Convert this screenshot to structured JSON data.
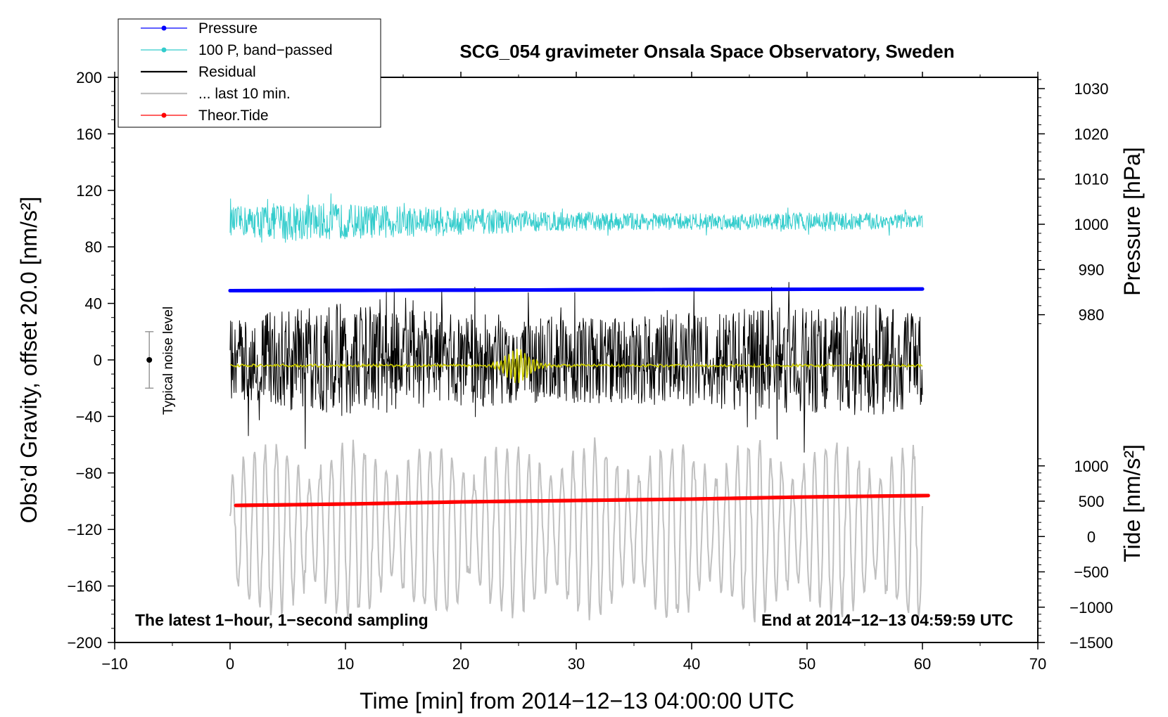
{
  "chart_data": {
    "type": "line",
    "title": "SCG_054 gravimeter Onsala Space Observatory, Sweden",
    "xlabel": "Time [min] from 2014−12−13 04:00:00 UTC",
    "ylabel": "Obs’d Gravity, offset 20.0 [nm/s²]",
    "xlim": [
      -10,
      70
    ],
    "ylim": [
      -200,
      200
    ],
    "x_ticks": [
      -10,
      0,
      10,
      20,
      30,
      40,
      50,
      60,
      70
    ],
    "x_tick_labels": [
      "−10",
      "0",
      "10",
      "20",
      "30",
      "40",
      "50",
      "60",
      "70"
    ],
    "y_ticks": [
      -200,
      -160,
      -120,
      -80,
      -40,
      0,
      40,
      80,
      120,
      160,
      200
    ],
    "y_tick_labels": [
      "−200",
      "−160",
      "−120",
      "−80",
      "−40",
      "0",
      "40",
      "80",
      "120",
      "160",
      "200"
    ],
    "right_axis_pressure": {
      "label": "Pressure [hPa]",
      "ticks": [
        980,
        990,
        1000,
        1010,
        1020,
        1030
      ],
      "tick_labels": [
        "980",
        "990",
        "1000",
        "1010",
        "1020",
        "1030"
      ],
      "axis_value_at_y0": 970,
      "axis_units_per_y": 0.3125
    },
    "right_axis_tide": {
      "label": "Tide [nm/s²]",
      "ticks": [
        -1500,
        -1000,
        -500,
        0,
        500,
        1000
      ],
      "tick_labels": [
        "−1500",
        "−1000",
        "−500",
        "0",
        "500",
        "1000"
      ],
      "axis_value_at_y0": 2500,
      "axis_units_per_y": 20
    },
    "legend": {
      "placement": "top-left",
      "items": [
        {
          "label": "Pressure",
          "color": "#0000ff",
          "marker": true
        },
        {
          "label": "100 P, band−passed",
          "color": "#33cccc",
          "marker": true
        },
        {
          "label": "Residual",
          "color": "#000000",
          "marker": false
        },
        {
          "label": "... last 10 min.",
          "color": "#c0c0c0",
          "marker": false
        },
        {
          "label": "Theor.Tide",
          "color": "#ff0000",
          "marker": true
        }
      ]
    },
    "noise_marker": {
      "x": -7,
      "y": 0,
      "y_low": -20,
      "y_high": 20,
      "label": "Typical noise level"
    },
    "annotations": {
      "bottom_left": "The latest 1−hour, 1−second sampling",
      "bottom_right": "End at 2014−12−13 04:59:59 UTC"
    },
    "x_range_data": [
      0,
      60
    ],
    "series": [
      {
        "name": "Pressure",
        "color": "#0000ff",
        "kind": "line",
        "x": [
          0,
          10,
          20,
          30,
          40,
          50,
          60
        ],
        "y": [
          49,
          49.2,
          49.4,
          49.6,
          49.8,
          50,
          50.2
        ]
      },
      {
        "name": "100 P, band−passed",
        "color": "#33cccc",
        "kind": "noise",
        "center": 98,
        "amplitudes": [
          [
            0,
            10
          ],
          [
            5,
            14
          ],
          [
            12,
            12
          ],
          [
            20,
            10
          ],
          [
            28,
            7
          ],
          [
            38,
            6
          ],
          [
            46,
            6
          ],
          [
            52,
            7
          ],
          [
            60,
            5
          ]
        ]
      },
      {
        "name": "Residual",
        "color": "#000000",
        "kind": "noise",
        "center": 0,
        "amplitudes": [
          [
            0,
            28
          ],
          [
            6,
            38
          ],
          [
            10,
            40
          ],
          [
            18,
            34
          ],
          [
            24,
            32
          ],
          [
            30,
            30
          ],
          [
            40,
            34
          ],
          [
            48,
            38
          ],
          [
            56,
            40
          ],
          [
            60,
            32
          ]
        ]
      },
      {
        "name": "Residual smoothed",
        "color": "#cccc00",
        "kind": "smooth",
        "center": -4,
        "burst": {
          "x": 25,
          "amplitude": 12,
          "width": 1.5
        }
      },
      {
        "name": "... last 10 min.",
        "color": "#c0c0c0",
        "kind": "oscillation",
        "center": -120,
        "amplitude": 60
      },
      {
        "name": "Theor.Tide",
        "color": "#ff0000",
        "kind": "line",
        "x": [
          0.5,
          10,
          20,
          30,
          40,
          50,
          60.5
        ],
        "y": [
          -103,
          -102,
          -100.5,
          -99.5,
          -98.5,
          -97,
          -96
        ]
      }
    ]
  }
}
